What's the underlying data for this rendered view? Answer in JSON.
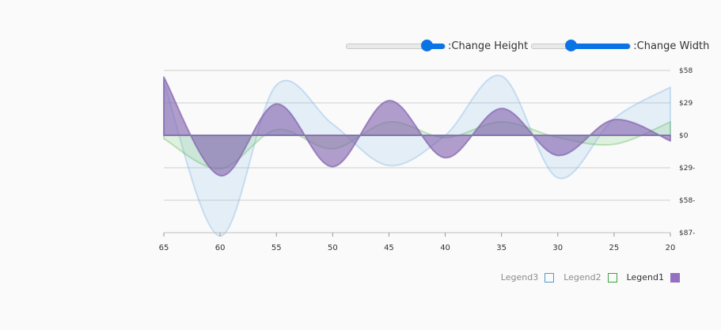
{
  "controls": {
    "height_label": ":Change Height",
    "width_label": ":Change Width",
    "height_value": 0.85,
    "width_value": 0.38
  },
  "legend": [
    {
      "label": "Legend3",
      "color": "#4e9bd1",
      "filled": false
    },
    {
      "label": "Legend2",
      "color": "#3aa53a",
      "filled": false
    },
    {
      "label": "Legend1",
      "color": "#9370c2",
      "filled": true
    }
  ],
  "chart_data": {
    "type": "area",
    "x": [
      65,
      60,
      55,
      50,
      45,
      40,
      35,
      30,
      25,
      20
    ],
    "xlim": [
      65,
      20
    ],
    "ylim": [
      -87,
      58
    ],
    "x_ticks": [
      65,
      60,
      55,
      50,
      45,
      40,
      35,
      30,
      25,
      20
    ],
    "y_ticks": [
      {
        "value": 58,
        "label": "$58"
      },
      {
        "value": 29,
        "label": "$29"
      },
      {
        "value": 0,
        "label": "$0"
      },
      {
        "value": -29,
        "label": "$29-"
      },
      {
        "value": -58,
        "label": "$58-"
      },
      {
        "value": -87,
        "label": "$87-"
      }
    ],
    "grid": true,
    "series": [
      {
        "name": "Legend3",
        "color": "#4e9bd1",
        "x": [
          65,
          60,
          55,
          50,
          45,
          40,
          35,
          30,
          25,
          20
        ],
        "values": [
          48,
          -90,
          45,
          10,
          -27,
          0,
          53,
          -38,
          15,
          43
        ]
      },
      {
        "name": "Legend2",
        "color": "#3aa53a",
        "x": [
          65,
          60,
          55,
          50,
          45,
          40,
          35,
          30,
          25,
          20
        ],
        "values": [
          -3,
          -30,
          5,
          -12,
          12,
          -2,
          12,
          -2,
          -8,
          12
        ]
      },
      {
        "name": "Legend1",
        "color": "#9370c2",
        "x": [
          65,
          60,
          55,
          50,
          45,
          40,
          35,
          30,
          25,
          20
        ],
        "values": [
          52,
          -36,
          28,
          -28,
          31,
          -20,
          24,
          -18,
          14,
          -5
        ]
      }
    ]
  }
}
